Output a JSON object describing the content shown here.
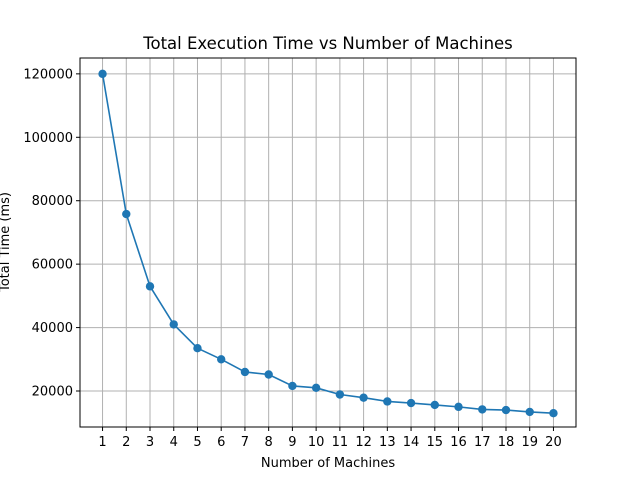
{
  "chart_data": {
    "type": "line",
    "title": "Total Execution Time vs Number of Machines",
    "xlabel": "Number of Machines",
    "ylabel": "Total Time (ms)",
    "x": [
      1,
      2,
      3,
      4,
      5,
      6,
      7,
      8,
      9,
      10,
      11,
      12,
      13,
      14,
      15,
      16,
      17,
      18,
      19,
      20
    ],
    "series": [
      {
        "values": [
          120000,
          75800,
          53000,
          41000,
          33500,
          30000,
          26000,
          25200,
          21600,
          21000,
          18900,
          17900,
          16700,
          16200,
          15600,
          15000,
          14200,
          14000,
          13400,
          13000
        ],
        "color": "#1f77b4",
        "marker": "circle"
      }
    ],
    "xlim": [
      0.05,
      20.95
    ],
    "ylim": [
      8650,
      125000
    ],
    "xticks": [
      1,
      2,
      3,
      4,
      5,
      6,
      7,
      8,
      9,
      10,
      11,
      12,
      13,
      14,
      15,
      16,
      17,
      18,
      19,
      20
    ],
    "yticks": [
      20000,
      40000,
      60000,
      80000,
      100000,
      120000
    ],
    "grid": true
  }
}
